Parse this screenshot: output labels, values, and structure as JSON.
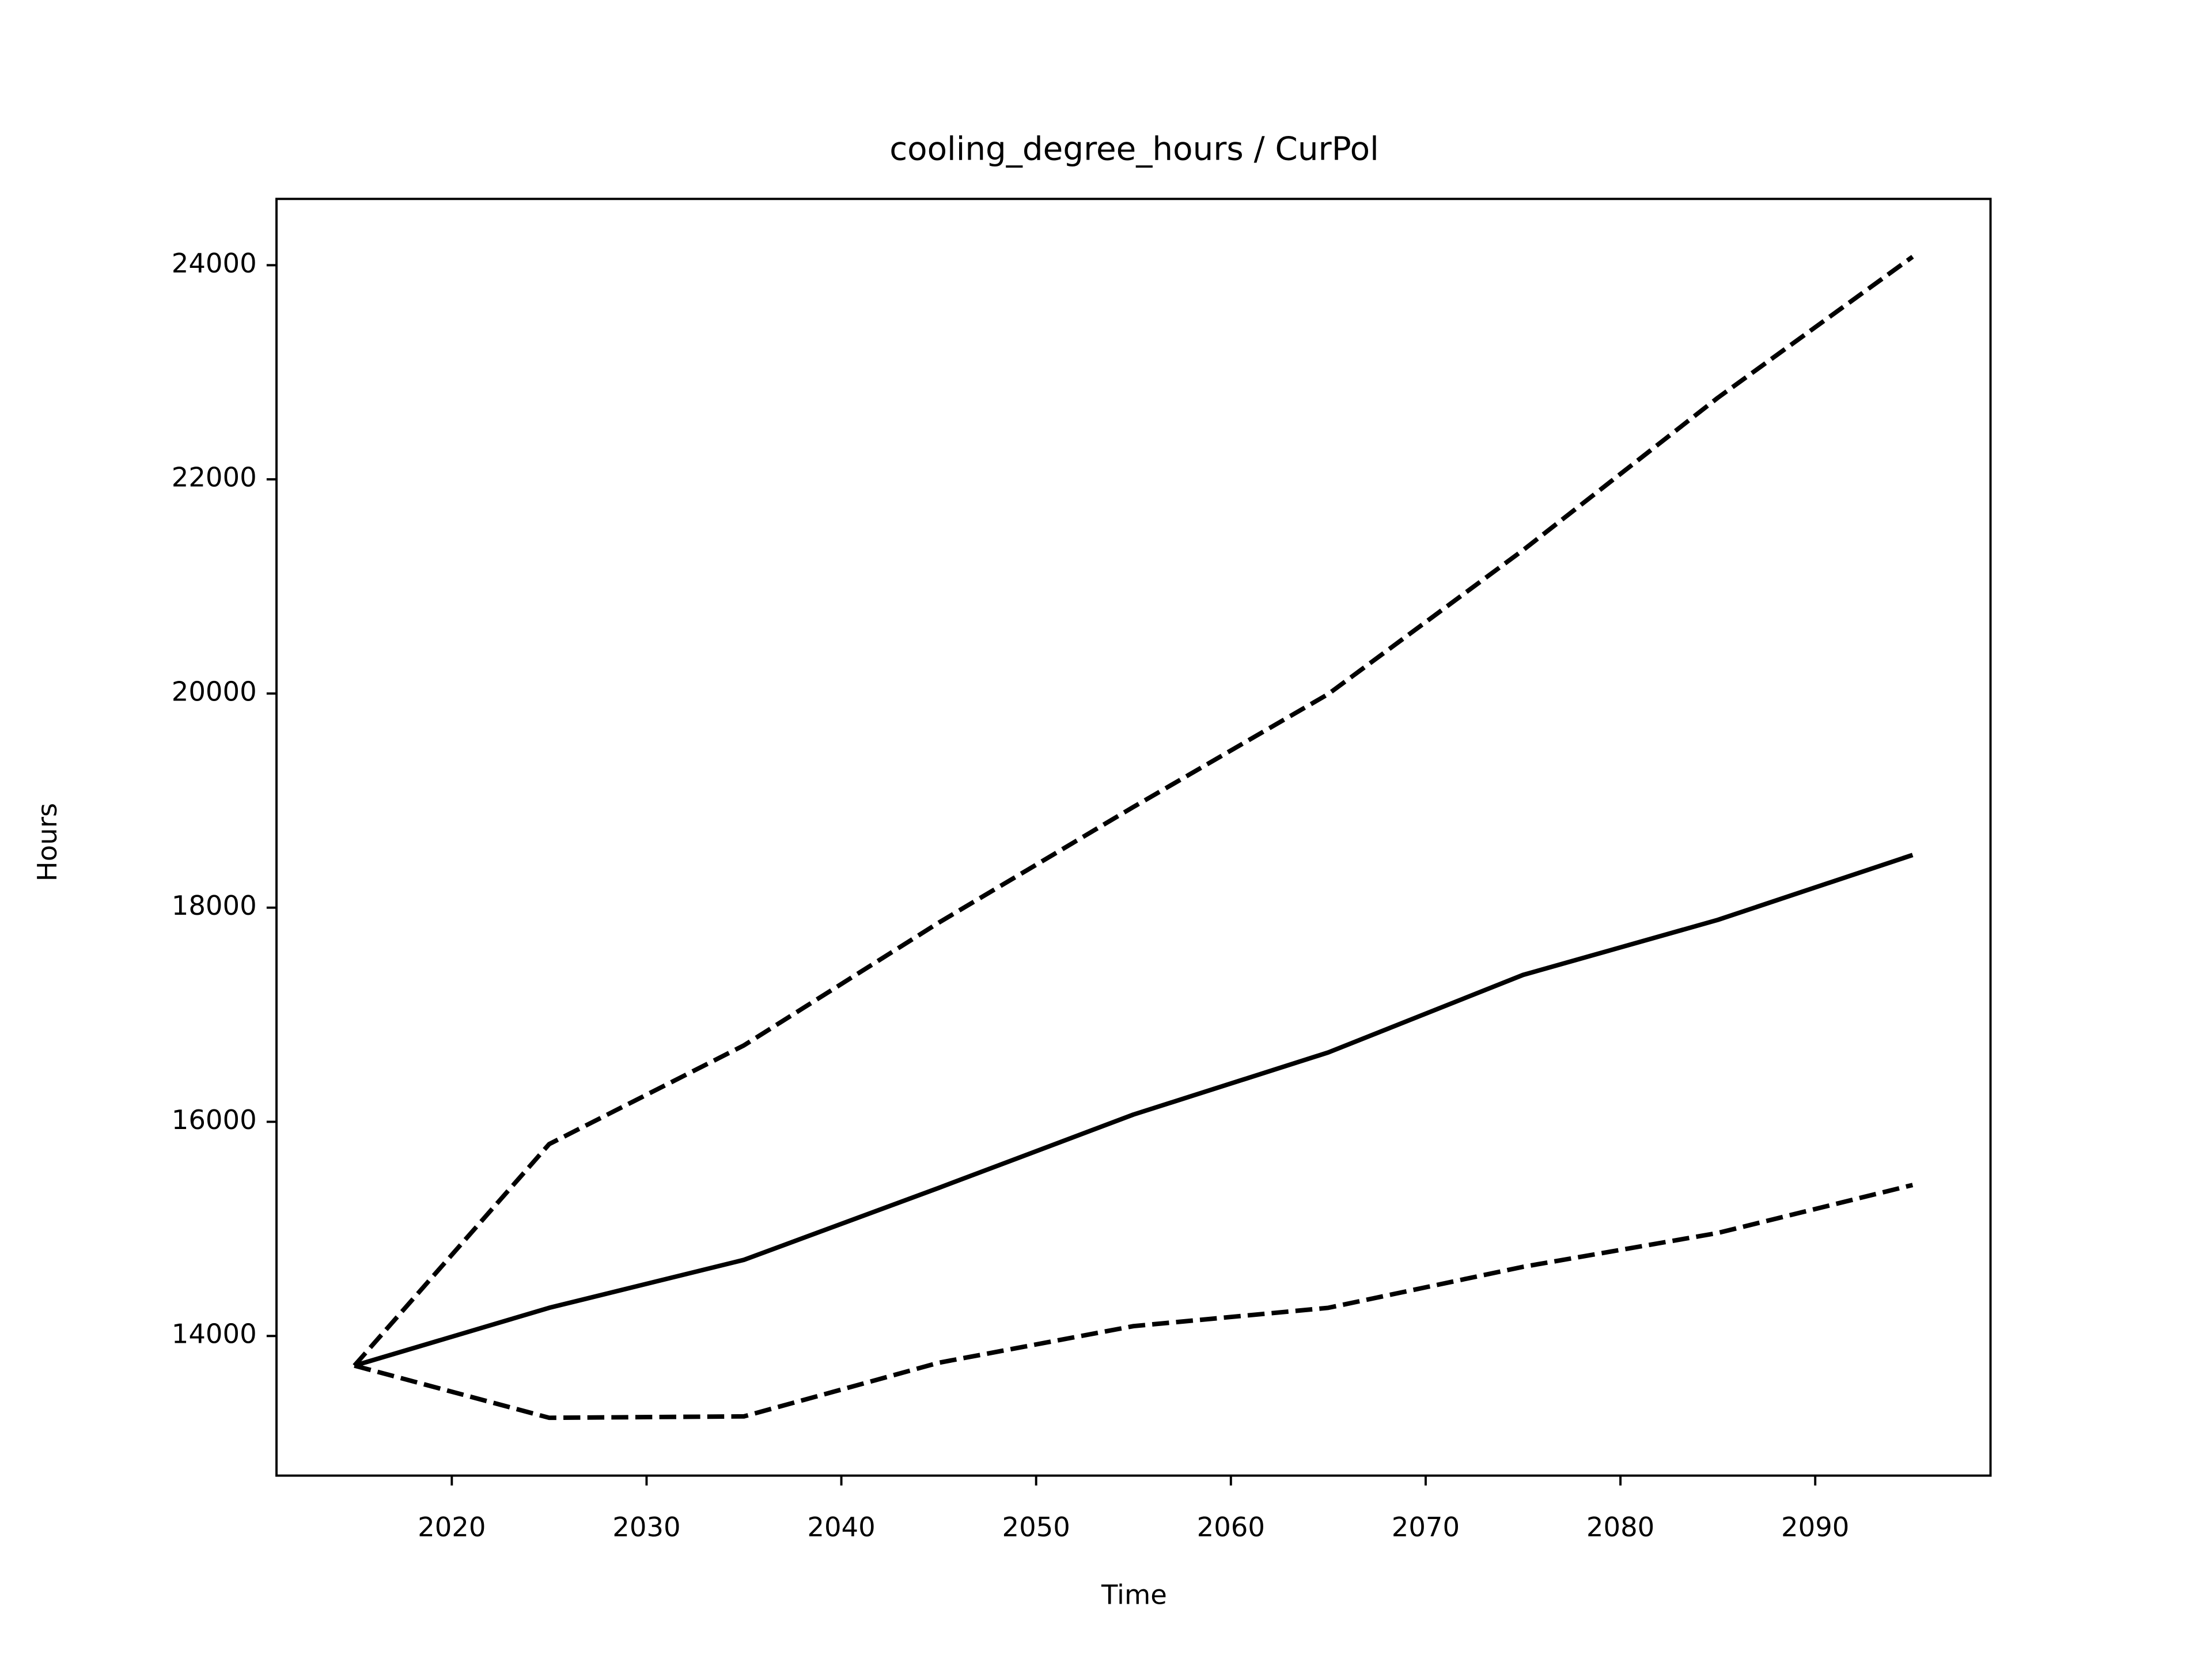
{
  "chart_data": {
    "type": "line",
    "title": "cooling_degree_hours / CurPol",
    "xlabel": "Time",
    "ylabel": "Hours",
    "x": [
      2015,
      2025,
      2035,
      2045,
      2055,
      2065,
      2075,
      2085,
      2095
    ],
    "series": [
      {
        "color": "#000000",
        "linestyle": "solid",
        "values": [
          13723,
          14263,
          14711,
          15383,
          16068,
          16648,
          17372,
          17886,
          18492
        ]
      },
      {
        "color": "#000000",
        "linestyle": "dashed",
        "values": [
          13723,
          15792,
          16714,
          17860,
          18941,
          19995,
          21339,
          22762,
          24079
        ]
      },
      {
        "color": "#000000",
        "linestyle": "dashed",
        "values": [
          13723,
          13236,
          13249,
          13750,
          14092,
          14263,
          14646,
          14962,
          15410
        ]
      }
    ],
    "xlim": [
      2011,
      2099
    ],
    "xticks": [
      2020,
      2030,
      2040,
      2050,
      2060,
      2070,
      2080,
      2090
    ],
    "ylim": [
      12696,
      24619
    ],
    "yticks": [
      14000,
      16000,
      18000,
      20000,
      22000,
      24000
    ],
    "grid": false
  }
}
